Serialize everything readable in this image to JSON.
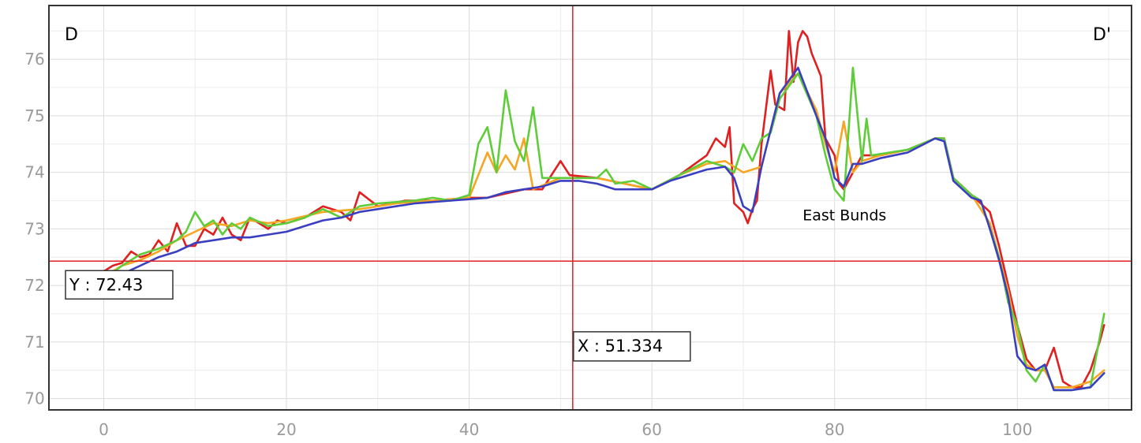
{
  "chart_data": {
    "type": "line",
    "title": "",
    "xlabel": "",
    "ylabel": "",
    "xlim": [
      -6,
      112.5
    ],
    "ylim": [
      69.8,
      76.95
    ],
    "x_ticks": [
      0,
      20,
      40,
      60,
      80,
      100
    ],
    "y_ticks": [
      70,
      71,
      72,
      73,
      74,
      75,
      76
    ],
    "grid": true,
    "corner_labels": {
      "left": "D",
      "right": "D'"
    },
    "annotations": [
      {
        "text": "East Bunds",
        "x": 76.5,
        "y": 73.15
      }
    ],
    "crosshair": {
      "x": 51.334,
      "y": 72.43,
      "x_label": "X : ",
      "x_value": "51.334",
      "y_label": "Y : ",
      "y_value": "72.43",
      "color": "#e02020"
    },
    "series": [
      {
        "color": "#e02020",
        "points": [
          [
            0,
            72.25
          ],
          [
            1,
            72.35
          ],
          [
            2,
            72.4
          ],
          [
            3,
            72.6
          ],
          [
            4,
            72.5
          ],
          [
            5,
            72.55
          ],
          [
            6,
            72.8
          ],
          [
            7,
            72.6
          ],
          [
            8,
            73.1
          ],
          [
            9,
            72.7
          ],
          [
            10,
            72.7
          ],
          [
            11,
            73.0
          ],
          [
            12,
            72.9
          ],
          [
            13,
            73.2
          ],
          [
            14,
            72.9
          ],
          [
            15,
            72.8
          ],
          [
            16,
            73.2
          ],
          [
            17,
            73.1
          ],
          [
            18,
            73.0
          ],
          [
            19,
            73.15
          ],
          [
            20,
            73.1
          ],
          [
            22,
            73.2
          ],
          [
            24,
            73.4
          ],
          [
            26,
            73.3
          ],
          [
            27,
            73.15
          ],
          [
            28,
            73.65
          ],
          [
            30,
            73.4
          ],
          [
            33,
            73.5
          ],
          [
            36,
            73.5
          ],
          [
            40,
            73.55
          ],
          [
            42,
            73.55
          ],
          [
            46,
            73.7
          ],
          [
            48,
            73.7
          ],
          [
            50,
            74.2
          ],
          [
            51,
            73.95
          ],
          [
            54,
            73.9
          ],
          [
            57,
            73.8
          ],
          [
            60,
            73.7
          ],
          [
            63,
            73.95
          ],
          [
            66,
            74.3
          ],
          [
            67,
            74.6
          ],
          [
            68,
            74.45
          ],
          [
            68.5,
            74.8
          ],
          [
            69,
            73.45
          ],
          [
            70,
            73.3
          ],
          [
            70.5,
            73.1
          ],
          [
            71,
            73.35
          ],
          [
            71.5,
            73.5
          ],
          [
            72,
            74.5
          ],
          [
            73,
            75.8
          ],
          [
            73.5,
            75.2
          ],
          [
            74.5,
            75.1
          ],
          [
            75,
            76.5
          ],
          [
            75.5,
            75.6
          ],
          [
            76,
            76.3
          ],
          [
            76.5,
            76.5
          ],
          [
            77,
            76.4
          ],
          [
            77.5,
            76.1
          ],
          [
            78,
            75.9
          ],
          [
            78.5,
            75.7
          ],
          [
            79,
            74.6
          ],
          [
            80,
            74.3
          ],
          [
            80.5,
            73.8
          ],
          [
            81,
            73.7
          ],
          [
            82,
            74.0
          ],
          [
            83,
            74.3
          ],
          [
            85,
            74.3
          ],
          [
            88,
            74.4
          ],
          [
            91,
            74.6
          ],
          [
            92,
            74.6
          ],
          [
            93,
            73.9
          ],
          [
            95,
            73.6
          ],
          [
            97,
            73.3
          ],
          [
            98,
            72.7
          ],
          [
            99,
            72.0
          ],
          [
            100,
            71.3
          ],
          [
            101,
            70.7
          ],
          [
            102,
            70.5
          ],
          [
            103,
            70.5
          ],
          [
            104,
            70.9
          ],
          [
            105,
            70.3
          ],
          [
            106,
            70.2
          ],
          [
            107,
            70.2
          ],
          [
            108,
            70.5
          ],
          [
            109,
            71.0
          ],
          [
            109.5,
            71.3
          ]
        ]
      },
      {
        "color": "#f5a623",
        "points": [
          [
            0,
            72.15
          ],
          [
            2,
            72.35
          ],
          [
            4,
            72.45
          ],
          [
            6,
            72.6
          ],
          [
            8,
            72.8
          ],
          [
            10,
            72.95
          ],
          [
            12,
            73.1
          ],
          [
            14,
            73.05
          ],
          [
            16,
            73.15
          ],
          [
            18,
            73.1
          ],
          [
            20,
            73.15
          ],
          [
            24,
            73.3
          ],
          [
            28,
            73.35
          ],
          [
            32,
            73.45
          ],
          [
            36,
            73.5
          ],
          [
            40,
            73.55
          ],
          [
            42,
            74.35
          ],
          [
            43,
            74.0
          ],
          [
            44,
            74.3
          ],
          [
            45,
            74.05
          ],
          [
            46,
            74.6
          ],
          [
            47,
            73.7
          ],
          [
            50,
            73.9
          ],
          [
            54,
            73.9
          ],
          [
            57,
            73.8
          ],
          [
            60,
            73.7
          ],
          [
            63,
            73.95
          ],
          [
            66,
            74.15
          ],
          [
            68,
            74.2
          ],
          [
            70,
            74.0
          ],
          [
            72,
            74.1
          ],
          [
            74,
            75.4
          ],
          [
            76,
            75.75
          ],
          [
            78,
            75.1
          ],
          [
            79,
            74.5
          ],
          [
            80,
            74.0
          ],
          [
            81,
            74.9
          ],
          [
            82,
            74.0
          ],
          [
            83,
            74.2
          ],
          [
            85,
            74.3
          ],
          [
            88,
            74.4
          ],
          [
            91,
            74.6
          ],
          [
            92,
            74.6
          ],
          [
            93,
            73.9
          ],
          [
            95,
            73.6
          ],
          [
            97,
            73.1
          ],
          [
            98,
            72.5
          ],
          [
            99,
            71.9
          ],
          [
            100,
            71.1
          ],
          [
            101,
            70.6
          ],
          [
            102,
            70.5
          ],
          [
            103,
            70.5
          ],
          [
            104,
            70.2
          ],
          [
            106,
            70.2
          ],
          [
            108,
            70.3
          ],
          [
            109.5,
            70.5
          ]
        ]
      },
      {
        "color": "#5fcc3a",
        "points": [
          [
            0,
            72.1
          ],
          [
            2,
            72.35
          ],
          [
            4,
            72.55
          ],
          [
            6,
            72.65
          ],
          [
            8,
            72.8
          ],
          [
            9,
            72.95
          ],
          [
            10,
            73.3
          ],
          [
            11,
            73.05
          ],
          [
            12,
            73.15
          ],
          [
            13,
            72.9
          ],
          [
            14,
            73.1
          ],
          [
            15,
            73.0
          ],
          [
            16,
            73.2
          ],
          [
            18,
            73.05
          ],
          [
            20,
            73.1
          ],
          [
            22,
            73.2
          ],
          [
            24,
            73.35
          ],
          [
            26,
            73.2
          ],
          [
            28,
            73.4
          ],
          [
            30,
            73.45
          ],
          [
            34,
            73.5
          ],
          [
            36,
            73.55
          ],
          [
            38,
            73.5
          ],
          [
            40,
            73.6
          ],
          [
            41,
            74.5
          ],
          [
            42,
            74.8
          ],
          [
            43,
            74.0
          ],
          [
            44,
            75.45
          ],
          [
            45,
            74.55
          ],
          [
            46,
            74.2
          ],
          [
            47,
            75.15
          ],
          [
            48,
            73.9
          ],
          [
            50,
            73.9
          ],
          [
            54,
            73.9
          ],
          [
            55,
            74.05
          ],
          [
            56,
            73.8
          ],
          [
            58,
            73.85
          ],
          [
            60,
            73.7
          ],
          [
            63,
            73.95
          ],
          [
            66,
            74.2
          ],
          [
            68,
            74.1
          ],
          [
            69,
            74.0
          ],
          [
            70,
            74.5
          ],
          [
            71,
            74.2
          ],
          [
            72,
            74.6
          ],
          [
            73,
            74.7
          ],
          [
            74,
            75.3
          ],
          [
            76,
            75.75
          ],
          [
            78,
            75.0
          ],
          [
            79,
            74.3
          ],
          [
            80,
            73.7
          ],
          [
            81,
            73.5
          ],
          [
            82,
            75.85
          ],
          [
            83,
            74.2
          ],
          [
            83.5,
            74.95
          ],
          [
            84,
            74.3
          ],
          [
            86,
            74.35
          ],
          [
            88,
            74.4
          ],
          [
            91,
            74.6
          ],
          [
            92,
            74.6
          ],
          [
            93,
            73.9
          ],
          [
            95,
            73.6
          ],
          [
            96,
            73.5
          ],
          [
            97,
            73.0
          ],
          [
            98,
            72.5
          ],
          [
            99,
            71.7
          ],
          [
            100,
            71.3
          ],
          [
            101,
            70.5
          ],
          [
            102,
            70.3
          ],
          [
            103,
            70.6
          ],
          [
            104,
            70.15
          ],
          [
            106,
            70.15
          ],
          [
            108,
            70.2
          ],
          [
            109.5,
            71.5
          ]
        ]
      },
      {
        "color": "#3a3fc0",
        "points": [
          [
            0,
            72.0
          ],
          [
            2,
            72.2
          ],
          [
            4,
            72.35
          ],
          [
            6,
            72.5
          ],
          [
            8,
            72.6
          ],
          [
            10,
            72.75
          ],
          [
            12,
            72.8
          ],
          [
            14,
            72.85
          ],
          [
            16,
            72.85
          ],
          [
            18,
            72.9
          ],
          [
            20,
            72.95
          ],
          [
            22,
            73.05
          ],
          [
            24,
            73.15
          ],
          [
            26,
            73.2
          ],
          [
            28,
            73.3
          ],
          [
            30,
            73.35
          ],
          [
            34,
            73.45
          ],
          [
            38,
            73.5
          ],
          [
            42,
            73.55
          ],
          [
            44,
            73.65
          ],
          [
            46,
            73.7
          ],
          [
            48,
            73.75
          ],
          [
            50,
            73.85
          ],
          [
            52,
            73.85
          ],
          [
            54,
            73.8
          ],
          [
            56,
            73.7
          ],
          [
            58,
            73.7
          ],
          [
            60,
            73.7
          ],
          [
            62,
            73.85
          ],
          [
            64,
            73.95
          ],
          [
            66,
            74.05
          ],
          [
            68,
            74.1
          ],
          [
            69,
            73.9
          ],
          [
            70,
            73.4
          ],
          [
            71,
            73.3
          ],
          [
            72,
            74.1
          ],
          [
            74,
            75.4
          ],
          [
            76,
            75.85
          ],
          [
            78,
            75.0
          ],
          [
            79,
            74.6
          ],
          [
            80,
            73.9
          ],
          [
            81,
            73.75
          ],
          [
            82,
            74.15
          ],
          [
            83,
            74.15
          ],
          [
            85,
            74.25
          ],
          [
            88,
            74.35
          ],
          [
            91,
            74.6
          ],
          [
            92,
            74.55
          ],
          [
            93,
            73.85
          ],
          [
            95,
            73.55
          ],
          [
            96,
            73.5
          ],
          [
            97,
            73.0
          ],
          [
            98,
            72.45
          ],
          [
            99,
            71.8
          ],
          [
            100,
            70.75
          ],
          [
            101,
            70.55
          ],
          [
            102,
            70.5
          ],
          [
            103,
            70.6
          ],
          [
            104,
            70.15
          ],
          [
            106,
            70.15
          ],
          [
            108,
            70.2
          ],
          [
            109.5,
            70.45
          ]
        ]
      }
    ]
  }
}
